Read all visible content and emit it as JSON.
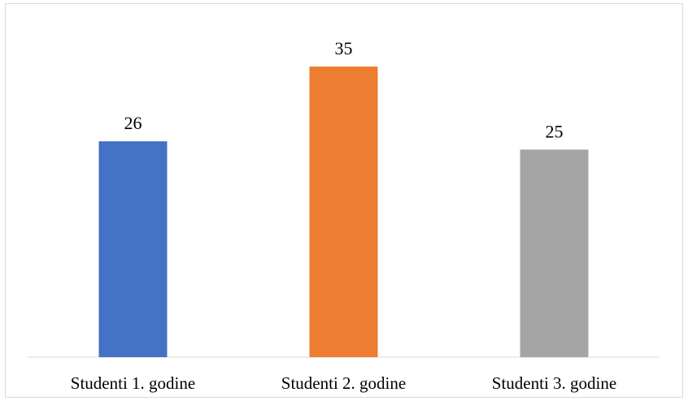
{
  "chart_data": {
    "type": "bar",
    "categories": [
      "Studenti 1. godine",
      "Studenti 2. godine",
      "Studenti 3. godine"
    ],
    "values": [
      26,
      35,
      25
    ],
    "colors": [
      "#4472c4",
      "#ed7d31",
      "#a5a5a5"
    ],
    "axis_color": "#d9d9d9",
    "title": "",
    "xlabel": "",
    "ylabel": "",
    "ylim": [
      0,
      40
    ],
    "grid": false,
    "legend": "none",
    "data_labels": true
  }
}
